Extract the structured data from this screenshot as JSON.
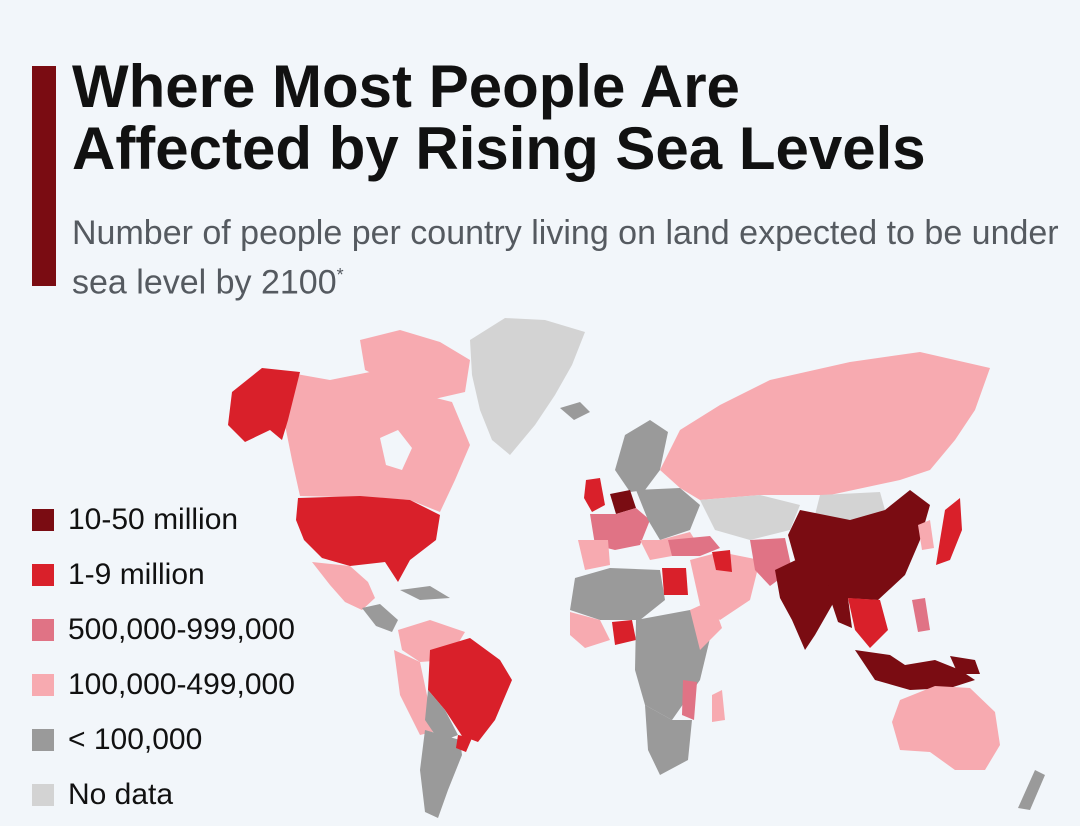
{
  "title_line1": "Where Most People Are",
  "title_line2": "Affected by Rising Sea Levels",
  "subtitle": "Number of people per country living on land expected to be under sea level by 2100",
  "subtitle_marker": "*",
  "colors": {
    "c10_50m": "#7a0c12",
    "c1_9m": "#d9202a",
    "c500k": "#e07385",
    "c100k": "#f7aab0",
    "clt100k": "#9a9a9a",
    "nodata": "#d3d3d3",
    "background": "#f2f6fa",
    "accent": "#7a0c12"
  },
  "legend": [
    {
      "label": "10-50 million",
      "color": "#7a0c12"
    },
    {
      "label": "1-9 million",
      "color": "#d9202a"
    },
    {
      "label": "500,000-999,000",
      "color": "#e07385"
    },
    {
      "label": "100,000-499,000",
      "color": "#f7aab0"
    },
    {
      "label": "< 100,000",
      "color": "#9a9a9a"
    },
    {
      "label": "No data",
      "color": "#d3d3d3"
    }
  ]
}
